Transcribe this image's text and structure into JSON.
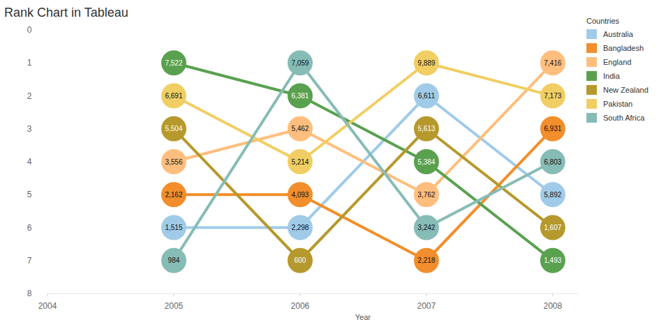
{
  "chart_data": {
    "type": "line",
    "title": "Rank Chart in Tableau",
    "x_label": "Year",
    "legend_title": "Countries",
    "legend": "right",
    "marker": "circle",
    "grid": false,
    "x": [
      2005,
      2006,
      2007,
      2008
    ],
    "xlim": [
      2004,
      2008.2
    ],
    "xticks": [
      2004,
      2005,
      2006,
      2007,
      2008
    ],
    "ylim": [
      8,
      0
    ],
    "yticks": [
      0,
      1,
      2,
      3,
      4,
      5,
      6,
      7,
      8
    ],
    "series": [
      {
        "name": "Australia",
        "color": "#a0cbe8",
        "values": [
          6,
          6,
          2,
          5
        ],
        "labels": [
          "1,515",
          "2,298",
          "6,611",
          "5,892"
        ]
      },
      {
        "name": "Bangladesh",
        "color": "#f28e2b",
        "values": [
          5,
          5,
          7,
          3
        ],
        "labels": [
          "2,162",
          "4,093",
          "2,218",
          "6,931"
        ]
      },
      {
        "name": "England",
        "color": "#ffbe7d",
        "values": [
          4,
          3,
          5,
          1
        ],
        "labels": [
          "3,556",
          "5,462",
          "3,762",
          "7,416"
        ]
      },
      {
        "name": "India",
        "color": "#59a14f",
        "values": [
          1,
          2,
          4,
          7
        ],
        "labels": [
          "7,522",
          "6,381",
          "5,384",
          "1,493"
        ]
      },
      {
        "name": "New Zealand",
        "color": "#b6992d",
        "values": [
          3,
          7,
          3,
          6
        ],
        "labels": [
          "5,504",
          "600",
          "5,613",
          "1,607"
        ]
      },
      {
        "name": "Pakistan",
        "color": "#f1ce63",
        "values": [
          2,
          4,
          1,
          2
        ],
        "labels": [
          "6,691",
          "5,214",
          "9,889",
          "7,173"
        ]
      },
      {
        "name": "South Africa",
        "color": "#86bcb6",
        "values": [
          7,
          1,
          6,
          4
        ],
        "labels": [
          "984",
          "7,059",
          "3,242",
          "6,803"
        ]
      }
    ]
  }
}
